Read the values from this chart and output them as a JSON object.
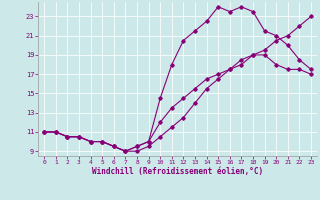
{
  "xlabel": "Windchill (Refroidissement éolien,°C)",
  "bg_color": "#cce8e8",
  "line_color": "#880077",
  "xlim": [
    -0.5,
    23.5
  ],
  "ylim": [
    8.5,
    24.5
  ],
  "xticks": [
    0,
    1,
    2,
    3,
    4,
    5,
    6,
    7,
    8,
    9,
    10,
    11,
    12,
    13,
    14,
    15,
    16,
    17,
    18,
    19,
    20,
    21,
    22,
    23
  ],
  "yticks": [
    9,
    11,
    13,
    15,
    17,
    19,
    21,
    23
  ],
  "line1_x": [
    0,
    1,
    2,
    3,
    4,
    5,
    6,
    7,
    8,
    9,
    10,
    11,
    12,
    13,
    14,
    15,
    16,
    17,
    18,
    19,
    20,
    21,
    22,
    23
  ],
  "line1_y": [
    11.0,
    11.0,
    10.5,
    10.5,
    10.0,
    10.0,
    9.5,
    9.0,
    9.0,
    9.5,
    10.5,
    11.5,
    12.5,
    14.0,
    15.5,
    16.5,
    17.5,
    18.0,
    19.0,
    19.0,
    18.0,
    17.5,
    17.5,
    17.0
  ],
  "line2_x": [
    0,
    1,
    2,
    3,
    4,
    5,
    6,
    7,
    8,
    9,
    10,
    11,
    12,
    13,
    14,
    15,
    16,
    17,
    18,
    19,
    20,
    21,
    22,
    23
  ],
  "line2_y": [
    11.0,
    11.0,
    10.5,
    10.5,
    10.0,
    10.0,
    9.5,
    9.0,
    9.5,
    10.0,
    14.5,
    18.0,
    20.5,
    21.5,
    22.5,
    24.0,
    23.5,
    24.0,
    23.5,
    21.5,
    21.0,
    20.0,
    18.5,
    17.5
  ],
  "line3_x": [
    0,
    1,
    2,
    3,
    4,
    5,
    6,
    7,
    8,
    9,
    10,
    11,
    12,
    13,
    14,
    15,
    16,
    17,
    18,
    19,
    20,
    21,
    22,
    23
  ],
  "line3_y": [
    11.0,
    11.0,
    10.5,
    10.5,
    10.0,
    10.0,
    9.5,
    9.0,
    9.5,
    10.0,
    12.0,
    13.5,
    14.5,
    15.5,
    16.5,
    17.0,
    17.5,
    18.5,
    19.0,
    19.5,
    20.5,
    21.0,
    22.0,
    23.0
  ]
}
